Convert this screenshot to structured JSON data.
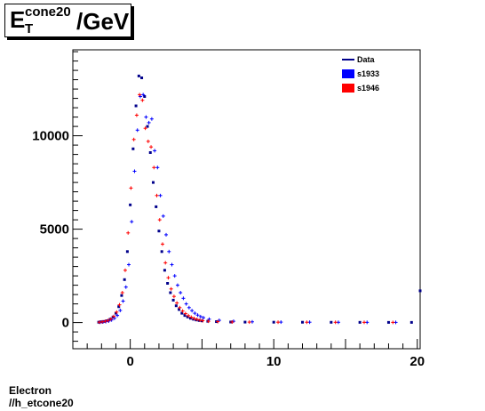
{
  "title": {
    "base": "E",
    "superscript": "cone20",
    "subscript": "T",
    "suffix": "/GeV"
  },
  "footer": {
    "line1": "Electron",
    "line2": "//h_etcone20"
  },
  "colors": {
    "data": "#00008b",
    "s1933": "#0000ff",
    "s1946": "#ff0000"
  },
  "chart_data": {
    "type": "scatter",
    "xlim": [
      -4,
      20.2
    ],
    "ylim": [
      -1400,
      14600
    ],
    "xticks": [
      0,
      10,
      20
    ],
    "yticks": [
      0,
      5000,
      10000
    ],
    "grid": false,
    "legend_placement": "top-right",
    "legend": [
      "Data",
      "s1933",
      "s1946"
    ],
    "series": [
      {
        "name": "Data",
        "marker": "dash",
        "x": [
          -2.2,
          -2.0,
          -1.8,
          -1.6,
          -1.4,
          -1.2,
          -1.0,
          -0.8,
          -0.6,
          -0.4,
          -0.2,
          0.0,
          0.2,
          0.4,
          0.6,
          0.8,
          1.0,
          1.2,
          1.4,
          1.6,
          1.8,
          2.0,
          2.2,
          2.4,
          2.6,
          2.8,
          3.0,
          3.2,
          3.4,
          3.6,
          3.8,
          4.0,
          4.2,
          4.4,
          4.6,
          4.8,
          5.0,
          5.4,
          6.0,
          7.0,
          8.0,
          10.0,
          12.0,
          14.0,
          16.0,
          18.0,
          19.6,
          20.2
        ],
        "y": [
          20,
          40,
          60,
          100,
          180,
          300,
          500,
          850,
          1450,
          2300,
          3800,
          6300,
          9300,
          11600,
          13200,
          13100,
          12100,
          10500,
          9100,
          7500,
          6200,
          4900,
          3800,
          2800,
          2100,
          1600,
          1200,
          900,
          700,
          500,
          380,
          300,
          230,
          180,
          140,
          110,
          90,
          70,
          50,
          30,
          25,
          20,
          18,
          15,
          12,
          10,
          10,
          1700
        ]
      },
      {
        "name": "s1933",
        "marker": "cross",
        "x": [
          -2.1,
          -1.9,
          -1.7,
          -1.5,
          -1.3,
          -1.1,
          -0.9,
          -0.7,
          -0.5,
          -0.3,
          -0.1,
          0.1,
          0.3,
          0.5,
          0.7,
          0.9,
          1.1,
          1.3,
          1.5,
          1.7,
          1.9,
          2.1,
          2.3,
          2.5,
          2.7,
          2.9,
          3.1,
          3.3,
          3.5,
          3.7,
          3.9,
          4.1,
          4.3,
          4.5,
          4.7,
          4.9,
          5.1,
          5.5,
          6.2,
          7.2,
          8.5,
          10.5,
          12.5,
          14.5,
          16.5,
          18.5
        ],
        "y": [
          20,
          30,
          50,
          80,
          140,
          230,
          380,
          650,
          1150,
          1900,
          3100,
          5400,
          8100,
          10300,
          12100,
          12200,
          11000,
          10700,
          10900,
          9200,
          8300,
          6800,
          5700,
          4700,
          3800,
          3100,
          2500,
          2000,
          1600,
          1300,
          1000,
          800,
          640,
          500,
          400,
          320,
          260,
          180,
          120,
          70,
          40,
          25,
          20,
          15,
          12,
          10
        ]
      },
      {
        "name": "s1946",
        "marker": "cross",
        "x": [
          -2.15,
          -1.95,
          -1.75,
          -1.55,
          -1.35,
          -1.15,
          -0.95,
          -0.75,
          -0.55,
          -0.35,
          -0.15,
          0.05,
          0.25,
          0.45,
          0.65,
          0.85,
          1.05,
          1.25,
          1.45,
          1.65,
          1.85,
          2.05,
          2.25,
          2.45,
          2.65,
          2.85,
          3.05,
          3.25,
          3.45,
          3.65,
          3.85,
          4.05,
          4.25,
          4.45,
          4.65,
          4.85,
          5.05,
          5.45,
          6.1,
          7.1,
          8.3,
          10.3,
          12.3,
          14.3,
          16.3,
          18.3
        ],
        "y": [
          20,
          40,
          70,
          110,
          190,
          330,
          560,
          950,
          1600,
          2800,
          4800,
          7200,
          9800,
          11100,
          12200,
          11900,
          10400,
          9700,
          9400,
          8300,
          6800,
          5500,
          4200,
          3200,
          2400,
          1800,
          1400,
          1050,
          800,
          620,
          480,
          370,
          290,
          220,
          170,
          130,
          100,
          70,
          50,
          30,
          25,
          20,
          18,
          15,
          12,
          10
        ]
      }
    ]
  }
}
